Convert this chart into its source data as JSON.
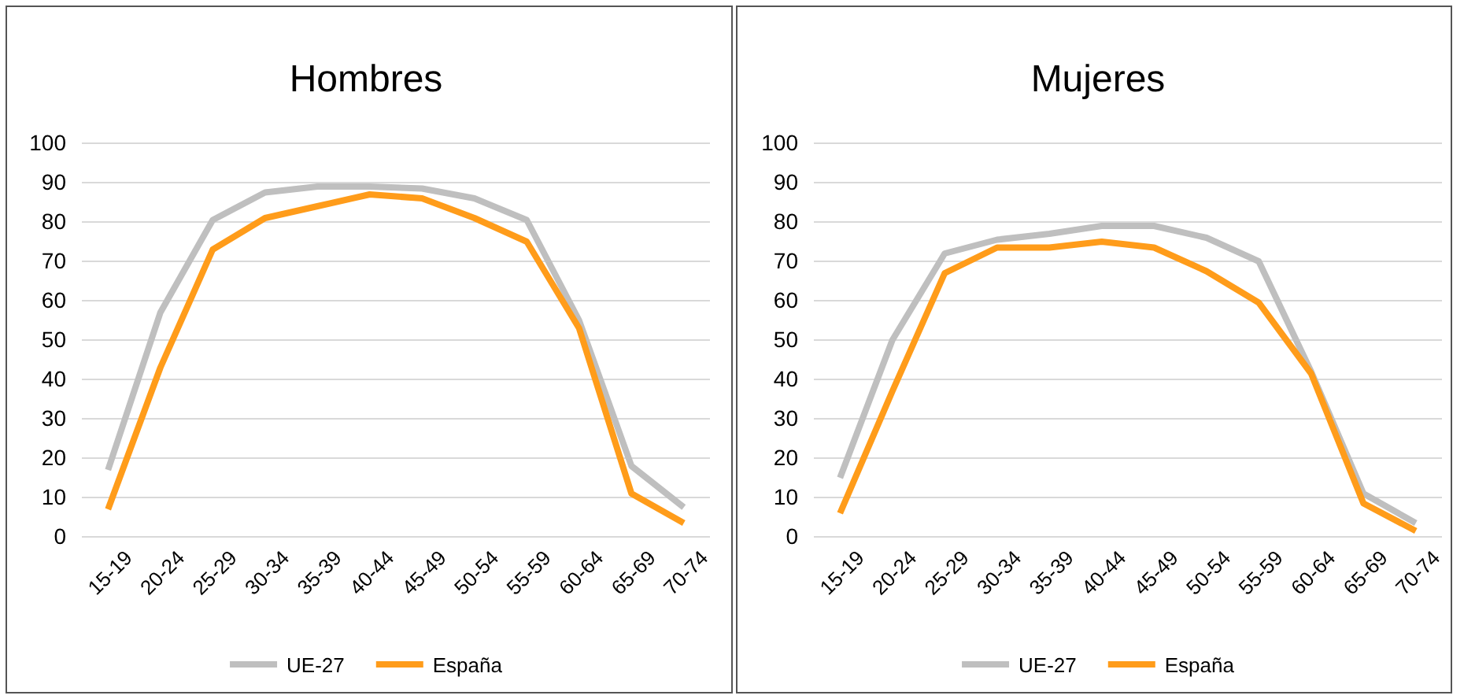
{
  "chart_data": [
    {
      "type": "line",
      "title": "Hombres",
      "categories": [
        "15-19",
        "20-24",
        "25-29",
        "30-34",
        "35-39",
        "40-44",
        "45-49",
        "50-54",
        "55-59",
        "60-64",
        "65-69",
        "70-74"
      ],
      "series": [
        {
          "name": "UE-27",
          "color": "#bfbfbf",
          "values": [
            17,
            57,
            80.5,
            87.5,
            89,
            89,
            88.5,
            86,
            80.5,
            55,
            18,
            7.5
          ]
        },
        {
          "name": "España",
          "color": "#ff9c1a",
          "values": [
            7,
            43,
            73,
            81,
            84,
            87,
            86,
            81,
            75,
            53,
            11,
            3.5
          ]
        }
      ],
      "ylim": [
        0,
        100
      ],
      "yticks": [
        0,
        10,
        20,
        30,
        40,
        50,
        60,
        70,
        80,
        90,
        100
      ],
      "grid": "y",
      "legend": "bottom"
    },
    {
      "type": "line",
      "title": "Mujeres",
      "categories": [
        "15-19",
        "20-24",
        "25-29",
        "30-34",
        "35-39",
        "40-44",
        "45-49",
        "50-54",
        "55-59",
        "60-64",
        "65-69",
        "70-74"
      ],
      "series": [
        {
          "name": "UE-27",
          "color": "#bfbfbf",
          "values": [
            15,
            50,
            72,
            75.5,
            77,
            79,
            79,
            76,
            70,
            42,
            11,
            3.5
          ]
        },
        {
          "name": "España",
          "color": "#ff9c1a",
          "values": [
            6,
            37,
            67,
            73.5,
            73.5,
            75,
            73.5,
            67.5,
            59.5,
            41.5,
            8.5,
            1.5
          ]
        }
      ],
      "ylim": [
        0,
        100
      ],
      "yticks": [
        0,
        10,
        20,
        30,
        40,
        50,
        60,
        70,
        80,
        90,
        100
      ],
      "grid": "y",
      "legend": "bottom"
    }
  ]
}
